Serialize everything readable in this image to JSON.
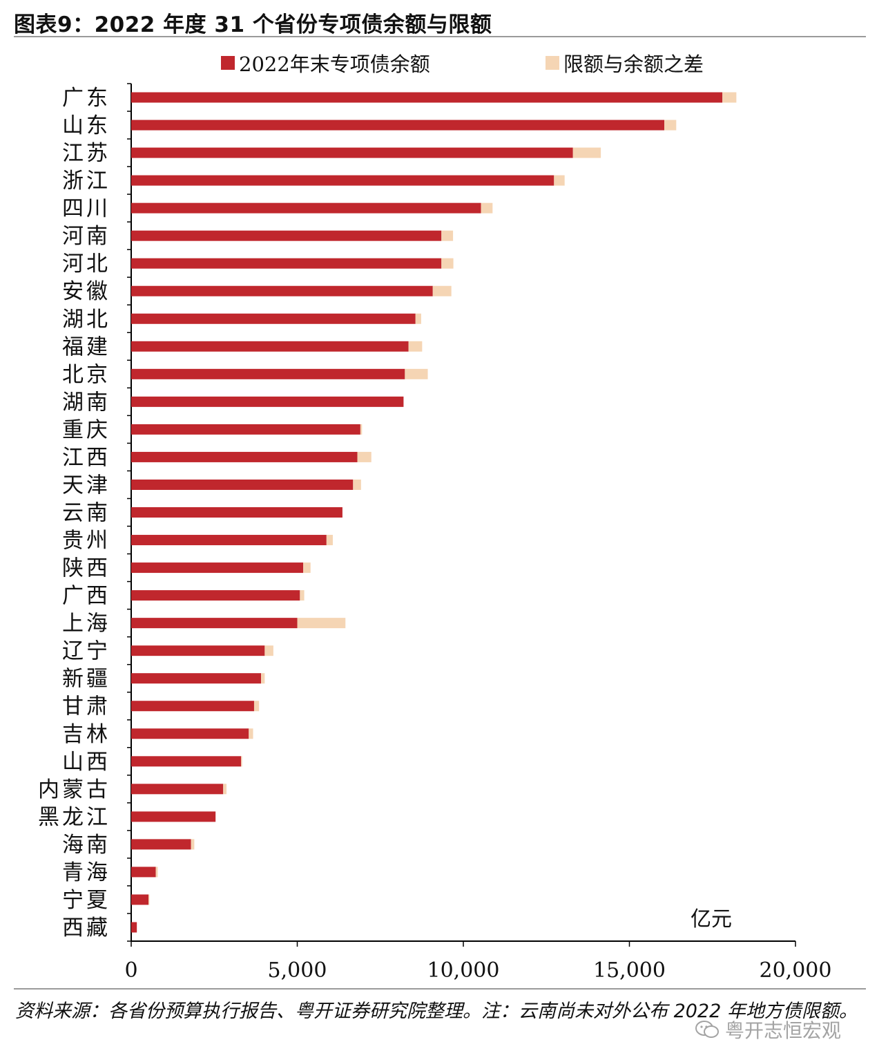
{
  "header": {
    "title": "图表9：2022 年度 31 个省份专项债余额与限额"
  },
  "legend": {
    "items": [
      {
        "label": "2022年末专项债余额",
        "color": "#c0272d"
      },
      {
        "label": "限额与余额之差",
        "color": "#f5d5b4"
      }
    ]
  },
  "chart_data": {
    "type": "bar",
    "orientation": "horizontal",
    "stacked": true,
    "categories": [
      "广东",
      "山东",
      "江苏",
      "浙江",
      "四川",
      "河南",
      "河北",
      "安徽",
      "湖北",
      "福建",
      "北京",
      "湖南",
      "重庆",
      "江西",
      "天津",
      "云南",
      "贵州",
      "陕西",
      "广西",
      "上海",
      "辽宁",
      "新疆",
      "甘肃",
      "吉林",
      "山西",
      "内蒙古",
      "黑龙江",
      "海南",
      "青海",
      "宁夏",
      "西藏"
    ],
    "series": [
      {
        "name": "2022年末专项债余额",
        "color": "#c0272d",
        "values": [
          17800,
          16050,
          13300,
          12730,
          10530,
          9340,
          9340,
          9080,
          8560,
          8350,
          8240,
          8200,
          6900,
          6810,
          6680,
          6360,
          5880,
          5180,
          5080,
          5000,
          4020,
          3910,
          3700,
          3540,
          3310,
          2770,
          2540,
          1800,
          740,
          520,
          170
        ]
      },
      {
        "name": "限额与余额之差",
        "color": "#f5d5b4",
        "values": [
          420,
          360,
          840,
          320,
          350,
          350,
          360,
          560,
          170,
          410,
          690,
          0,
          50,
          420,
          240,
          0,
          190,
          220,
          130,
          1450,
          260,
          110,
          150,
          130,
          30,
          100,
          0,
          100,
          60,
          30,
          0
        ]
      }
    ],
    "xlim": [
      0,
      20000
    ],
    "xticks": [
      "0",
      "5,000",
      "10,000",
      "15,000",
      "20,000"
    ],
    "unit_label": "亿元"
  },
  "footer": {
    "source": "资料来源：各省份预算执行报告、粤开证券研究院整理。注：云南尚未对外公布 2022 年地方债限额。",
    "watermark": "粤开志恒宏观"
  }
}
